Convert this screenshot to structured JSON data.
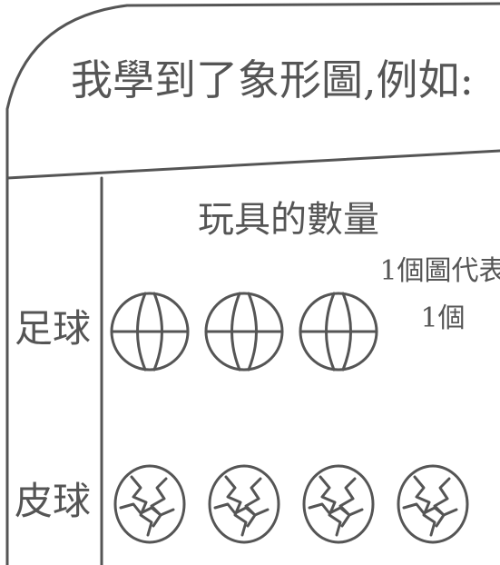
{
  "chart_data": {
    "type": "pictograph",
    "heading": "我學到了象形圖,例如:",
    "title": "玩具的數量",
    "note": [
      "1個圖代表",
      "1個"
    ],
    "categories": [
      "足球",
      "皮球"
    ],
    "values": [
      3,
      4
    ]
  }
}
